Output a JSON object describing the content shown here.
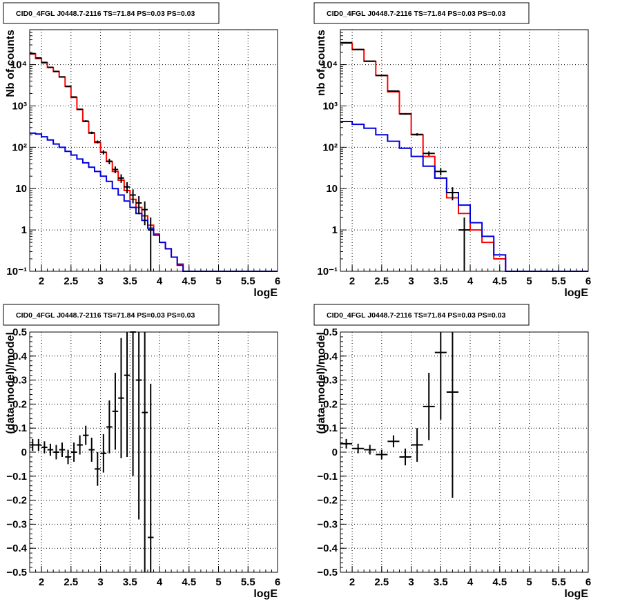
{
  "panels": [
    {
      "title": "CID0_4FGL J0448.7-2116 TS=71.84 PS=0.03 PS=0.03",
      "xlabel": "logE",
      "ylabel": "Nb of counts",
      "xticks": [
        "2",
        "2.5",
        "3",
        "3.5",
        "4",
        "4.5",
        "5",
        "5.5",
        "6"
      ],
      "yticks": [
        "10⁻¹",
        "1",
        "10",
        "10²",
        "10³",
        "10⁴"
      ]
    },
    {
      "title": "CID0_4FGL J0448.7-2116 TS=71.84 PS=0.03 PS=0.03",
      "xlabel": "logE",
      "ylabel": "nb of counts",
      "xticks": [
        "2",
        "2.5",
        "3",
        "3.5",
        "4",
        "4.5",
        "5",
        "5.5",
        "6"
      ],
      "yticks": [
        "10⁻¹",
        "1",
        "10",
        "10²",
        "10³",
        "10⁴"
      ]
    },
    {
      "title": "CID0_4FGL J0448.7-2116 TS=71.84 PS=0.03 PS=0.03",
      "xlabel": "logE",
      "ylabel": "(data-model)/model",
      "xticks": [
        "2",
        "2.5",
        "3",
        "3.5",
        "4",
        "4.5",
        "5",
        "5.5",
        "6"
      ],
      "yticks": [
        "−0.5",
        "−0.4",
        "−0.3",
        "−0.2",
        "−0.1",
        "0",
        "0.1",
        "0.2",
        "0.3",
        "0.4",
        "0.5"
      ]
    },
    {
      "title": "CID0_4FGL J0448.7-2116 TS=71.84 PS=0.03 PS=0.03",
      "xlabel": "logE",
      "ylabel": "(data-model)/model",
      "xticks": [
        "2",
        "2.5",
        "3",
        "3.5",
        "4",
        "4.5",
        "5",
        "5.5",
        "6"
      ],
      "yticks": [
        "−0.5",
        "−0.4",
        "−0.3",
        "−0.2",
        "−0.1",
        "0",
        "0.1",
        "0.2",
        "0.3",
        "0.4",
        "0.5"
      ]
    }
  ],
  "chart_data": [
    {
      "type": "line",
      "title": "CID0_4FGL J0448.7-2116 TS=71.84 PS=0.03 PS=0.03",
      "xlabel": "logE",
      "ylabel": "Nb of counts",
      "xlim": [
        1.8,
        6.0
      ],
      "ylim": [
        0.1,
        70000
      ],
      "yscale": "log",
      "grid": true,
      "bin_edges": [
        1.8,
        1.9,
        2.0,
        2.1,
        2.2,
        2.3,
        2.4,
        2.5,
        2.6,
        2.7,
        2.8,
        2.9,
        3.0,
        3.1,
        3.2,
        3.3,
        3.4,
        3.5,
        3.6,
        3.7,
        3.8,
        3.9,
        4.0,
        4.1,
        4.2,
        4.3,
        4.4,
        4.5,
        4.6,
        4.7,
        4.8,
        4.9,
        5.0,
        5.1,
        5.2,
        5.3,
        5.4,
        5.5,
        5.6,
        5.7,
        5.8,
        5.9,
        6.0
      ],
      "series": [
        {
          "color": "#ff0000",
          "values": [
            18000,
            14000,
            11000,
            8500,
            6800,
            5000,
            3000,
            1600,
            820,
            420,
            220,
            130,
            75,
            45,
            26,
            16,
            9,
            5.5,
            3.5,
            2.2,
            1.3,
            0.8,
            0.5,
            0.35,
            0.22,
            0.15,
            0.1,
            0.1,
            0.1,
            0.1,
            0.1,
            0.1,
            0.1,
            0.1,
            0.1,
            0.1,
            0.1,
            0.1,
            0.1,
            0.1,
            0.1,
            0.1
          ]
        },
        {
          "color": "#0000dd",
          "values": [
            220,
            210,
            180,
            150,
            120,
            100,
            80,
            65,
            52,
            42,
            33,
            26,
            20,
            15,
            10,
            7,
            5,
            3.5,
            2.5,
            1.7,
            1.1,
            0.75,
            0.5,
            0.35,
            0.22,
            0.14,
            0.1,
            0.1,
            0.1,
            0.1,
            0.1,
            0.1,
            0.1,
            0.1,
            0.1,
            0.1,
            0.1,
            0.1,
            0.1,
            0.1,
            0.1,
            0.1
          ]
        },
        {
          "color": "#000000",
          "kind": "points",
          "x": [
            1.85,
            1.95,
            2.05,
            2.15,
            2.25,
            2.35,
            2.45,
            2.55,
            2.65,
            2.75,
            2.85,
            2.95,
            3.05,
            3.15,
            3.25,
            3.35,
            3.45,
            3.55,
            3.65,
            3.75,
            3.85
          ],
          "y": [
            18500,
            14500,
            11300,
            8600,
            6850,
            5050,
            2950,
            1650,
            830,
            430,
            225,
            135,
            76,
            46,
            29,
            18,
            11,
            7,
            4.5,
            3.1,
            1
          ],
          "yerr_low": [
            140,
            120,
            110,
            90,
            80,
            70,
            54,
            40,
            29,
            21,
            15,
            11,
            9,
            7,
            5.4,
            4.2,
            3.3,
            2.6,
            2.1,
            1.8,
            1
          ]
        }
      ]
    },
    {
      "type": "line",
      "title": "CID0_4FGL J0448.7-2116 TS=71.84 PS=0.03 PS=0.03",
      "xlabel": "logE",
      "ylabel": "nb of counts",
      "xlim": [
        1.8,
        6.0
      ],
      "ylim": [
        0.1,
        70000
      ],
      "yscale": "log",
      "grid": true,
      "bin_edges": [
        1.8,
        2.0,
        2.2,
        2.4,
        2.6,
        2.8,
        3.0,
        3.2,
        3.4,
        3.6,
        3.8,
        4.0,
        4.2,
        4.4,
        4.6,
        4.8,
        5.0,
        5.2,
        5.4,
        5.6,
        5.8,
        6.0
      ],
      "series": [
        {
          "color": "#ff0000",
          "values": [
            33000,
            23000,
            12000,
            5500,
            2200,
            650,
            200,
            60,
            18,
            6,
            2.5,
            1,
            0.5,
            0.2,
            0.1,
            0.1,
            0.1,
            0.1,
            0.1,
            0.1,
            0.1
          ]
        },
        {
          "color": "#0000dd",
          "values": [
            420,
            360,
            290,
            200,
            140,
            95,
            60,
            35,
            18,
            8,
            4,
            1.5,
            0.7,
            0.25,
            0.1,
            0.1,
            0.1,
            0.1,
            0.1,
            0.1,
            0.1
          ]
        },
        {
          "color": "#000000",
          "kind": "points",
          "x": [
            1.9,
            2.1,
            2.3,
            2.5,
            2.7,
            2.9,
            3.1,
            3.3,
            3.5,
            3.7,
            3.9
          ],
          "y": [
            34000,
            23300,
            12100,
            5450,
            2300,
            640,
            205,
            71,
            26,
            8,
            1
          ],
          "yerr_low": [
            185,
            150,
            110,
            74,
            48,
            25,
            14,
            8.4,
            5.1,
            2.8,
            1
          ]
        }
      ]
    },
    {
      "type": "scatter",
      "title": "CID0_4FGL J0448.7-2116 TS=71.84 PS=0.03 PS=0.03",
      "xlabel": "logE",
      "ylabel": "(data-model)/model",
      "xlim": [
        1.8,
        6.0
      ],
      "ylim": [
        -0.5,
        0.5
      ],
      "grid": true,
      "series": [
        {
          "color": "#000000",
          "x": [
            1.85,
            1.95,
            2.05,
            2.15,
            2.25,
            2.35,
            2.45,
            2.55,
            2.65,
            2.75,
            2.85,
            2.95,
            3.05,
            3.15,
            3.25,
            3.35,
            3.45,
            3.55,
            3.65,
            3.75,
            3.85
          ],
          "y": [
            0.03,
            0.03,
            0.02,
            0.01,
            0.0,
            0.01,
            -0.02,
            0.0,
            0.03,
            0.07,
            0.01,
            -0.07,
            -0.005,
            0.105,
            0.17,
            0.225,
            0.32,
            0.5,
            0.3,
            0.165,
            -0.355
          ],
          "yerr": [
            0.025,
            0.025,
            0.025,
            0.025,
            0.03,
            0.03,
            0.03,
            0.04,
            0.04,
            0.04,
            0.05,
            0.07,
            0.08,
            0.11,
            0.16,
            0.25,
            0.34,
            0.6,
            0.58,
            0.7,
            0.64
          ]
        }
      ]
    },
    {
      "type": "scatter",
      "title": "CID0_4FGL J0448.7-2116 TS=71.84 PS=0.03 PS=0.03",
      "xlabel": "logE",
      "ylabel": "(data-model)/model",
      "xlim": [
        1.8,
        6.0
      ],
      "ylim": [
        -0.5,
        0.5
      ],
      "grid": true,
      "series": [
        {
          "color": "#000000",
          "x": [
            1.9,
            2.1,
            2.3,
            2.5,
            2.7,
            2.9,
            3.1,
            3.3,
            3.5,
            3.7
          ],
          "y": [
            0.035,
            0.015,
            0.01,
            -0.01,
            0.045,
            -0.02,
            0.03,
            0.19,
            0.415,
            0.25
          ],
          "yerr": [
            0.02,
            0.02,
            0.02,
            0.02,
            0.025,
            0.035,
            0.07,
            0.14,
            0.28,
            0.44
          ]
        }
      ]
    }
  ]
}
